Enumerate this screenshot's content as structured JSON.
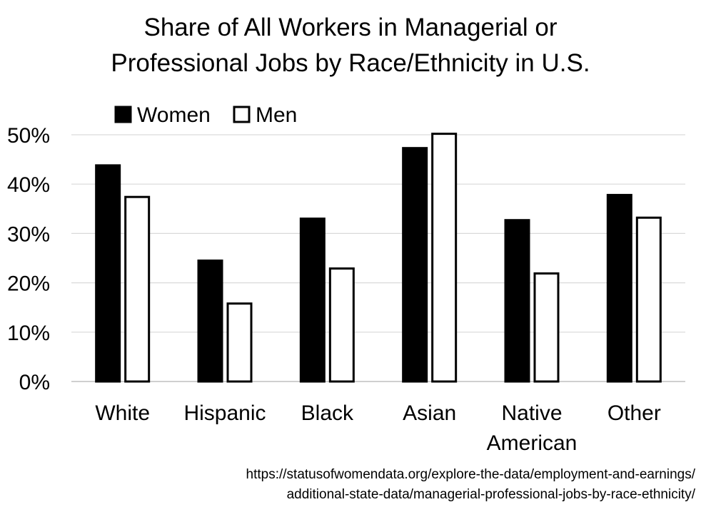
{
  "chart_data": {
    "type": "bar",
    "title": "Share of All Workers in Managerial or Professional Jobs by Race/Ethnicity in U.S.",
    "title_lines": [
      "Share of All Workers in Managerial or",
      "Professional Jobs by Race/Ethnicity in U.S."
    ],
    "categories": [
      "White",
      "Hispanic",
      "Black",
      "Asian",
      "Native American",
      "Other"
    ],
    "category_lines": [
      [
        "White"
      ],
      [
        "Hispanic"
      ],
      [
        "Black"
      ],
      [
        "Asian"
      ],
      [
        "Native",
        "American"
      ],
      [
        "Other"
      ]
    ],
    "series": [
      {
        "name": "Women",
        "values": [
          43.8,
          24.5,
          33.0,
          47.3,
          32.7,
          37.8
        ],
        "color": "#000000"
      },
      {
        "name": "Men",
        "values": [
          37.4,
          15.8,
          22.9,
          50.2,
          21.9,
          33.2
        ],
        "color": "#ffffff"
      }
    ],
    "yticks": [
      "0%",
      "10%",
      "20%",
      "30%",
      "40%",
      "50%"
    ],
    "ylim": [
      0,
      50
    ],
    "xlabel": "",
    "ylabel": "",
    "grid": true,
    "legend_position": "top-left",
    "source_lines": [
      "https://statusofwomendata.org/explore-the-data/employment-and-earnings/",
      "additional-state-data/managerial-professional-jobs-by-race-ethnicity/"
    ]
  }
}
